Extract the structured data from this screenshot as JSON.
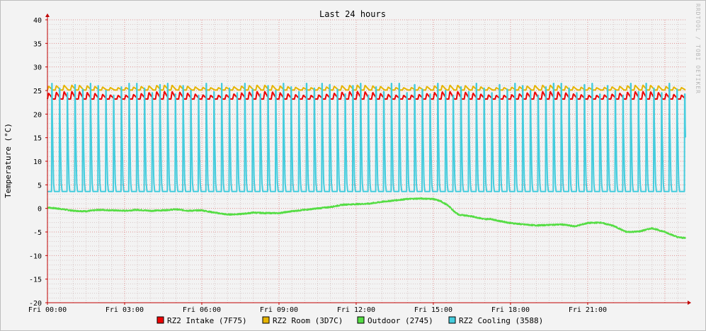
{
  "chart_data": {
    "type": "line",
    "title": "Last 24 hours",
    "ylabel": "Temperature (°C)",
    "watermark": "RRDTOOL / TOBI OETIKER",
    "ylim": [
      -20,
      40
    ],
    "yticks": [
      -20,
      -15,
      -10,
      -5,
      0,
      5,
      10,
      15,
      20,
      25,
      30,
      35,
      40
    ],
    "xlim_hours": [
      0,
      24.8
    ],
    "xticks": [
      {
        "hour": 0,
        "label": "Fri 00:00"
      },
      {
        "hour": 3,
        "label": "Fri 03:00"
      },
      {
        "hour": 6,
        "label": "Fri 06:00"
      },
      {
        "hour": 9,
        "label": "Fri 09:00"
      },
      {
        "hour": 12,
        "label": "Fri 12:00"
      },
      {
        "hour": 15,
        "label": "Fri 15:00"
      },
      {
        "hour": 18,
        "label": "Fri 18:00"
      },
      {
        "hour": 21,
        "label": "Fri 21:00"
      }
    ],
    "grid": true,
    "legend_position": "bottom",
    "series": [
      {
        "name": "RZ2 Intake (7F75)",
        "color": "#ee0000",
        "pattern": "sawtooth",
        "base": 23.2,
        "peak": 24.6,
        "cycle_hours": 0.3
      },
      {
        "name": "RZ2 Room (3D7C)",
        "color": "#e6b400",
        "pattern": "sawtooth",
        "base": 25.1,
        "peak": 26.0,
        "cycle_hours": 0.3
      },
      {
        "name": "Outdoor (2745)",
        "color": "#55dd44",
        "pattern": "trend",
        "points": [
          [
            0,
            0.2
          ],
          [
            0.5,
            -0.1
          ],
          [
            1,
            -0.5
          ],
          [
            1.5,
            -0.6
          ],
          [
            2,
            -0.3
          ],
          [
            2.5,
            -0.4
          ],
          [
            3,
            -0.5
          ],
          [
            3.5,
            -0.3
          ],
          [
            4,
            -0.5
          ],
          [
            4.5,
            -0.4
          ],
          [
            5,
            -0.2
          ],
          [
            5.5,
            -0.5
          ],
          [
            6,
            -0.4
          ],
          [
            6.5,
            -0.9
          ],
          [
            7,
            -1.3
          ],
          [
            7.5,
            -1.2
          ],
          [
            8,
            -0.9
          ],
          [
            8.5,
            -1.0
          ],
          [
            9,
            -1.0
          ],
          [
            9.5,
            -0.6
          ],
          [
            10,
            -0.3
          ],
          [
            10.5,
            0.0
          ],
          [
            11,
            0.3
          ],
          [
            11.5,
            0.8
          ],
          [
            12,
            0.9
          ],
          [
            12.5,
            1.0
          ],
          [
            13,
            1.4
          ],
          [
            13.5,
            1.7
          ],
          [
            14,
            2.0
          ],
          [
            14.5,
            2.1
          ],
          [
            15,
            2.0
          ],
          [
            15.3,
            1.5
          ],
          [
            15.6,
            0.5
          ],
          [
            15.8,
            -0.6
          ],
          [
            16,
            -1.4
          ],
          [
            16.3,
            -1.5
          ],
          [
            16.6,
            -1.8
          ],
          [
            17,
            -2.3
          ],
          [
            17.2,
            -2.2
          ],
          [
            17.5,
            -2.6
          ],
          [
            18,
            -3.1
          ],
          [
            18.5,
            -3.4
          ],
          [
            19,
            -3.6
          ],
          [
            19.5,
            -3.5
          ],
          [
            20,
            -3.4
          ],
          [
            20.5,
            -3.8
          ],
          [
            21,
            -3.1
          ],
          [
            21.5,
            -3.0
          ],
          [
            22,
            -3.7
          ],
          [
            22.5,
            -5.0
          ],
          [
            23,
            -4.9
          ],
          [
            23.5,
            -4.2
          ],
          [
            24,
            -5.0
          ],
          [
            24.5,
            -6.1
          ],
          [
            24.8,
            -6.3
          ]
        ]
      },
      {
        "name": "RZ2 Cooling (3588)",
        "color": "#44ccdd",
        "pattern": "pulses",
        "low": 3.6,
        "high": 26.5,
        "cycle_hours": 0.3
      }
    ]
  }
}
